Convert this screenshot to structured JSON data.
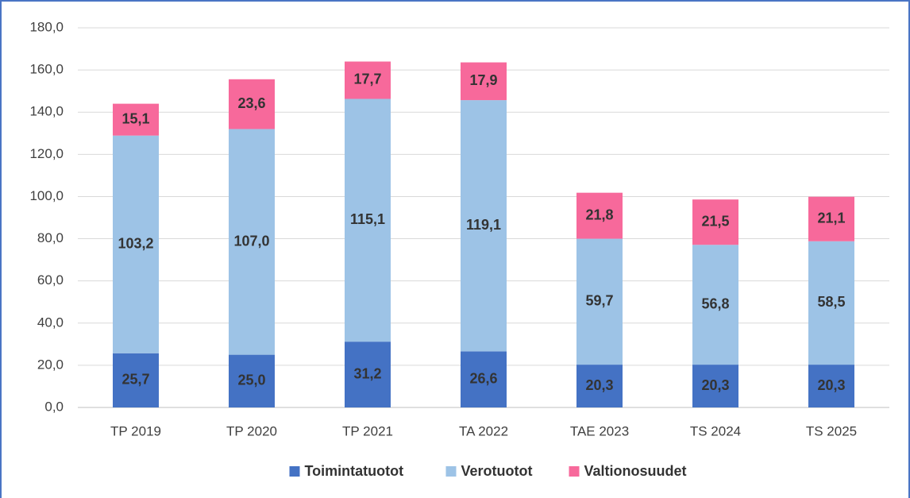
{
  "chart_data": {
    "type": "stacked_bar",
    "categories": [
      "TP 2019",
      "TP 2020",
      "TP 2021",
      "TA 2022",
      "TAE 2023",
      "TS 2024",
      "TS 2025"
    ],
    "series": [
      {
        "name": "Toimintatuotot",
        "color": "#4472c4",
        "values": [
          25.7,
          25.0,
          31.2,
          26.6,
          20.3,
          20.3,
          20.3
        ],
        "value_labels": [
          "25,7",
          "25,0",
          "31,2",
          "26,6",
          "20,3",
          "20,3",
          "20,3"
        ]
      },
      {
        "name": "Verotuotot",
        "color": "#9dc3e6",
        "values": [
          103.2,
          107.0,
          115.1,
          119.1,
          59.7,
          56.8,
          58.5
        ],
        "value_labels": [
          "103,2",
          "107,0",
          "115,1",
          "119,1",
          "59,7",
          "56,8",
          "58,5"
        ]
      },
      {
        "name": "Valtionosuudet",
        "color": "#f7699b",
        "values": [
          15.1,
          23.6,
          17.7,
          17.9,
          21.8,
          21.5,
          21.1
        ],
        "value_labels": [
          "15,1",
          "23,6",
          "17,7",
          "17,9",
          "21,8",
          "21,5",
          "21,1"
        ]
      }
    ],
    "ylim": [
      0,
      180
    ],
    "yticks": [
      {
        "value": 0,
        "label": "0,0"
      },
      {
        "value": 20,
        "label": "20,0"
      },
      {
        "value": 40,
        "label": "40,0"
      },
      {
        "value": 60,
        "label": "60,0"
      },
      {
        "value": 80,
        "label": "80,0"
      },
      {
        "value": 100,
        "label": "100,0"
      },
      {
        "value": 120,
        "label": "120,0"
      },
      {
        "value": 140,
        "label": "140,0"
      },
      {
        "value": 160,
        "label": "160,0"
      },
      {
        "value": 180,
        "label": "180,0"
      }
    ],
    "grid": true,
    "legend": "bottom"
  }
}
